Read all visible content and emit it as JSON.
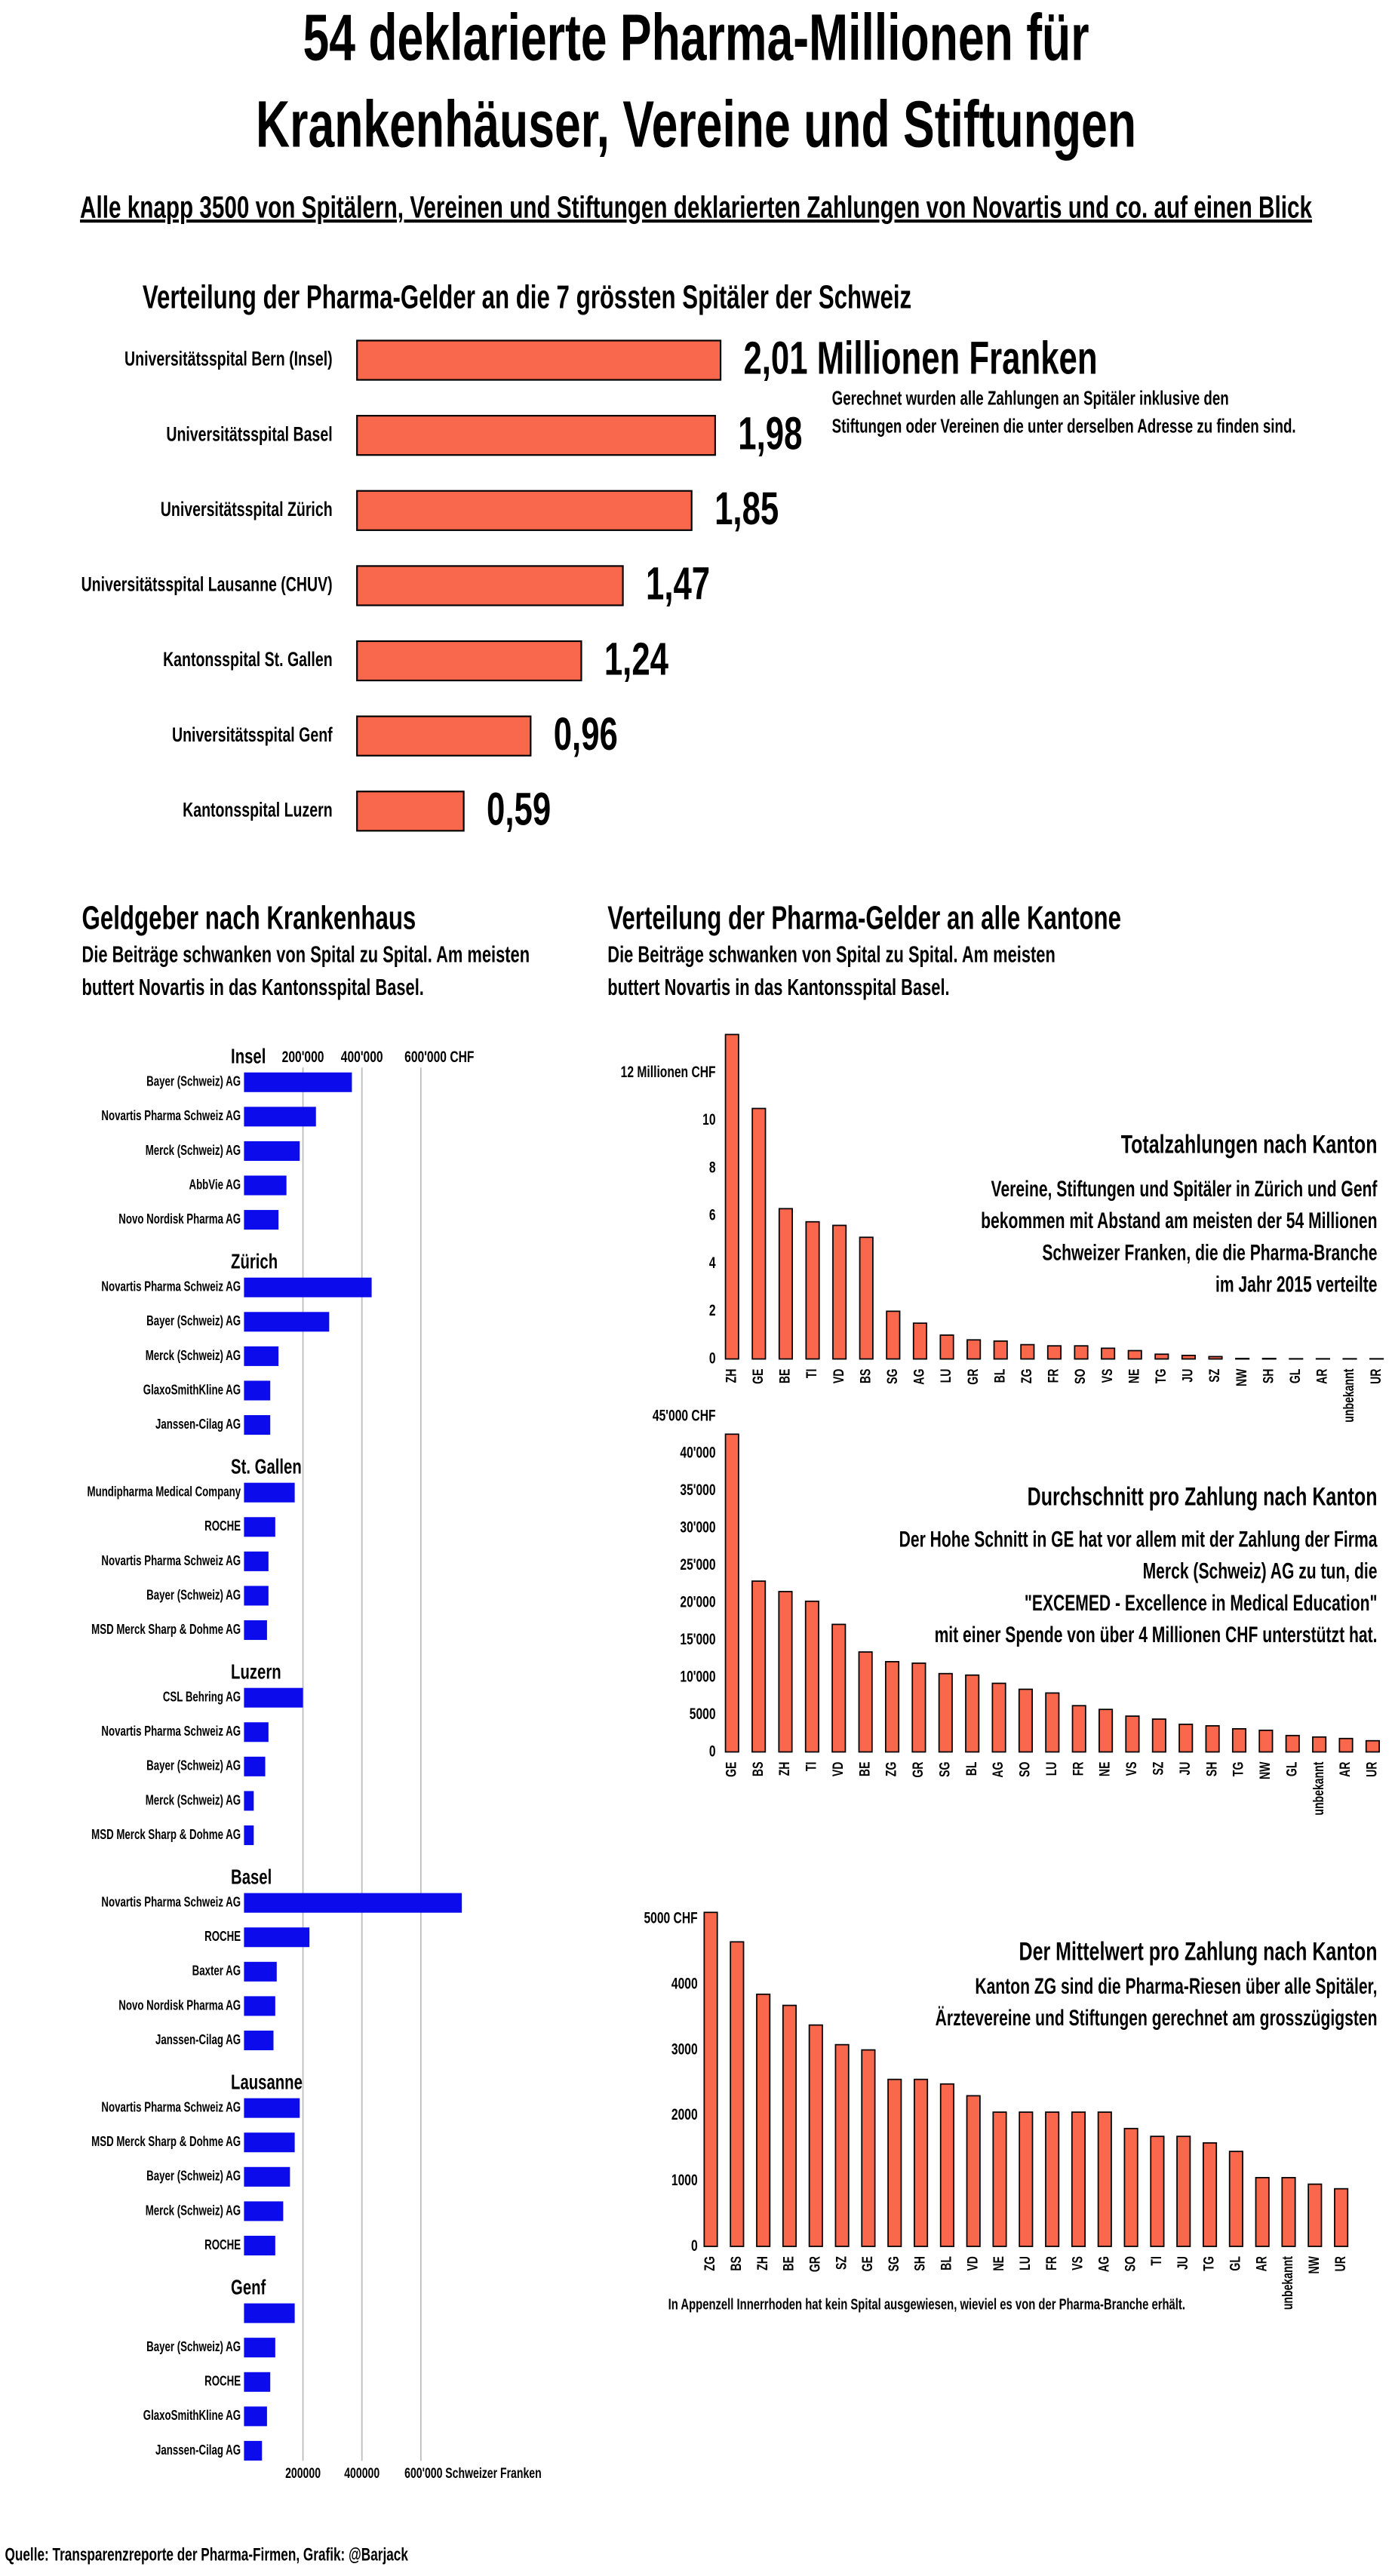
{
  "title": [
    "54 deklarierte Pharma-Millionen für",
    "Krankenhäuser, Vereine und Stiftungen"
  ],
  "subtitle": "Alle knapp 3500 von Spitälern, Vereinen und Stiftungen deklarierten Zahlungen von Novartis und co. auf einen Blick",
  "kantone": {
    "title": "Verteilung der Pharma-Gelder an alle Kantone",
    "subtitle": [
      "Die Beiträge schwanken von Spital zu Spital. Am meisten",
      "buttert Novartis in das Kantonsspital Basel."
    ]
  },
  "source": "Quelle: Transparenzreporte der Pharma-Firmen, Grafik: @Barjack",
  "chart_data": [
    {
      "type": "bar",
      "orientation": "horizontal",
      "title": "Verteilung der Pharma-Gelder an die 7 grössten Spitäler der Schweiz",
      "categories": [
        "Universitätsspital Bern (Insel)",
        "Universitätsspital Basel",
        "Universitätsspital Zürich",
        "Universitätsspital Lausanne (CHUV)",
        "Kantonsspital St. Gallen",
        "Universitätsspital Genf",
        "Kantonsspital Luzern"
      ],
      "values": [
        2.01,
        1.98,
        1.85,
        1.47,
        1.24,
        0.96,
        0.59
      ],
      "value_labels": [
        "2,01 Millionen Franken",
        "1,98",
        "1,85",
        "1,47",
        "1,24",
        "0,96",
        "0,59"
      ],
      "color": "#f9674c",
      "annotation": [
        "Gerechnet wurden alle Zahlungen an Spitäler inklusive den",
        "Stiftungen oder Vereinen die unter derselben Adresse zu finden sind."
      ]
    },
    {
      "type": "bar",
      "orientation": "horizontal",
      "title": "Geldgeber nach Krankenhaus",
      "subtitle": [
        "Die Beiträge schwanken von Spital zu Spital. Am meisten",
        "buttert Novartis in das Kantonsspital Basel."
      ],
      "color": "#0b0bec",
      "xlim": [
        0,
        800000
      ],
      "grid": true,
      "xticks": [
        {
          "value": 200000,
          "label": "200'000"
        },
        {
          "value": 400000,
          "label": "400'000"
        },
        {
          "value": 600000,
          "label": "600'000 CHF"
        }
      ],
      "x2ticks": [
        200000,
        400000,
        {
          "value": 600000,
          "label": "600'000 Schweizer Franken"
        }
      ],
      "groups": [
        {
          "name": "Insel",
          "categories": [
            "Bayer (Schweiz) AG",
            "Novartis Pharma Schweiz AG",
            "Merck (Schweiz) AG",
            "AbbVie AG",
            "Novo Nordisk Pharma AG"
          ],
          "values": [
            366000,
            244000,
            189000,
            144000,
            117000
          ]
        },
        {
          "name": "Zürich",
          "categories": [
            "Novartis Pharma Schweiz AG",
            "Bayer (Schweiz) AG",
            "Merck (Schweiz) AG",
            "GlaxoSmithKline AG",
            "Janssen-Cilag AG"
          ],
          "values": [
            433000,
            289000,
            117000,
            89000,
            89000
          ]
        },
        {
          "name": "St. Gallen",
          "categories": [
            "Mundipharma Medical Company",
            "ROCHE",
            "Novartis Pharma Schweiz AG",
            "Bayer (Schweiz) AG",
            "MSD Merck Sharp & Dohme AG"
          ],
          "values": [
            172000,
            106000,
            83000,
            83000,
            78000
          ]
        },
        {
          "name": "Luzern",
          "categories": [
            "CSL Behring AG",
            "Novartis Pharma Schweiz AG",
            "Bayer (Schweiz) AG",
            "Merck (Schweiz) AG",
            "MSD Merck Sharp & Dohme AG"
          ],
          "values": [
            200000,
            83000,
            72000,
            33000,
            33000
          ]
        },
        {
          "name": "Basel",
          "categories": [
            "Novartis Pharma Schweiz AG",
            "ROCHE",
            "Baxter AG",
            "Novo Nordisk Pharma AG",
            "Janssen-Cilag AG"
          ],
          "values": [
            739000,
            222000,
            111000,
            106000,
            100000
          ]
        },
        {
          "name": "Lausanne",
          "categories": [
            "Novartis Pharma Schweiz AG",
            "MSD Merck Sharp & Dohme AG",
            "Bayer (Schweiz) AG",
            "Merck (Schweiz) AG",
            "ROCHE"
          ],
          "values": [
            189000,
            172000,
            156000,
            133000,
            106000
          ]
        },
        {
          "name": "Genf",
          "categories": [
            null,
            "Bayer (Schweiz) AG",
            "ROCHE",
            "GlaxoSmithKline AG",
            "Janssen-Cilag AG"
          ],
          "values": [
            172000,
            106000,
            89000,
            78000,
            61000
          ]
        }
      ]
    },
    {
      "type": "bar",
      "title": "Totalzahlungen nach Kanton",
      "annotation": [
        "Vereine, Stiftungen und Spitäler in Zürich und Genf",
        "bekommen mit Abstand am meisten der 54 Millionen",
        "Schweizer Franken, die die Pharma-Branche",
        "im Jahr 2015 verteilte"
      ],
      "categories": [
        "ZH",
        "GE",
        "BE",
        "TI",
        "VD",
        "BS",
        "SG",
        "AG",
        "LU",
        "GR",
        "BL",
        "ZG",
        "FR",
        "SO",
        "VS",
        "NE",
        "TG",
        "JU",
        "SZ",
        "NW",
        "SH",
        "GL",
        "AR",
        "unbekannt",
        "UR"
      ],
      "values": [
        13.6,
        10.5,
        6.3,
        5.75,
        5.6,
        5.1,
        2.0,
        1.5,
        1.0,
        0.8,
        0.75,
        0.6,
        0.55,
        0.55,
        0.45,
        0.35,
        0.2,
        0.15,
        0.1,
        0.02,
        0.02,
        0.01,
        0.01,
        0.01,
        0.01
      ],
      "color": "#f9674c",
      "ylim": [
        0,
        14
      ],
      "yticks": [
        0,
        2,
        4,
        6,
        8,
        10,
        {
          "value": 12,
          "label": "12 Millionen CHF"
        }
      ]
    },
    {
      "type": "bar",
      "title": "Durchschnitt pro Zahlung nach Kanton",
      "annotation": [
        "Der Hohe Schnitt in GE hat vor allem mit der Zahlung der Firma",
        "Merck (Schweiz) AG zu tun, die",
        "\"EXCEMED - Excellence in Medical Education\"",
        "mit einer Spende von über 4 Millionen CHF unterstützt hat."
      ],
      "categories": [
        "GE",
        "BS",
        "ZH",
        "TI",
        "VD",
        "BE",
        "ZG",
        "GR",
        "SG",
        "BL",
        "AG",
        "SO",
        "LU",
        "FR",
        "NE",
        "VS",
        "SZ",
        "JU",
        "SH",
        "TG",
        "NW",
        "GL",
        "unbekannt",
        "AR",
        "UR"
      ],
      "values": [
        42600,
        22900,
        21500,
        20200,
        17100,
        13400,
        12100,
        11900,
        10500,
        10300,
        9200,
        8400,
        7900,
        6200,
        5700,
        4800,
        4400,
        3700,
        3500,
        3100,
        2900,
        2200,
        2000,
        1800,
        1500
      ],
      "color": "#f9674c",
      "ylim": [
        0,
        45000
      ],
      "yticks": [
        0,
        5000,
        {
          "value": 10000,
          "label": "10'000"
        },
        {
          "value": 15000,
          "label": "15'000"
        },
        {
          "value": 20000,
          "label": "20'000"
        },
        {
          "value": 25000,
          "label": "25'000"
        },
        {
          "value": 30000,
          "label": "30'000"
        },
        {
          "value": 35000,
          "label": "35'000"
        },
        {
          "value": 40000,
          "label": "40'000"
        },
        {
          "value": 45000,
          "label": "45'000 CHF"
        }
      ]
    },
    {
      "type": "bar",
      "title": "Der Mittelwert pro Zahlung nach Kanton",
      "annotation": [
        "Kanton ZG sind die Pharma-Riesen über alle Spitäler,",
        "Ärztevereine und Stiftungen gerechnet am grosszügigsten"
      ],
      "note": "In Appenzell Innerrhoden hat kein Spital ausgewiesen, wieviel es von der Pharma-Branche erhält.",
      "categories": [
        "ZG",
        "BS",
        "ZH",
        "BE",
        "GR",
        "SZ",
        "GE",
        "SG",
        "SH",
        "BL",
        "VD",
        "NE",
        "LU",
        "FR",
        "VS",
        "AG",
        "SO",
        "TI",
        "JU",
        "TG",
        "GL",
        "AR",
        "unbekannt",
        "NW",
        "UR"
      ],
      "values": [
        5100,
        4650,
        3850,
        3680,
        3380,
        3080,
        3000,
        2550,
        2550,
        2480,
        2300,
        2050,
        2050,
        2050,
        2050,
        2050,
        1800,
        1680,
        1680,
        1580,
        1450,
        1050,
        1050,
        950,
        880
      ],
      "color": "#f9674c",
      "ylim": [
        0,
        5000
      ],
      "yticks": [
        0,
        1000,
        2000,
        3000,
        4000,
        {
          "value": 5000,
          "label": "5000 CHF"
        }
      ]
    }
  ]
}
